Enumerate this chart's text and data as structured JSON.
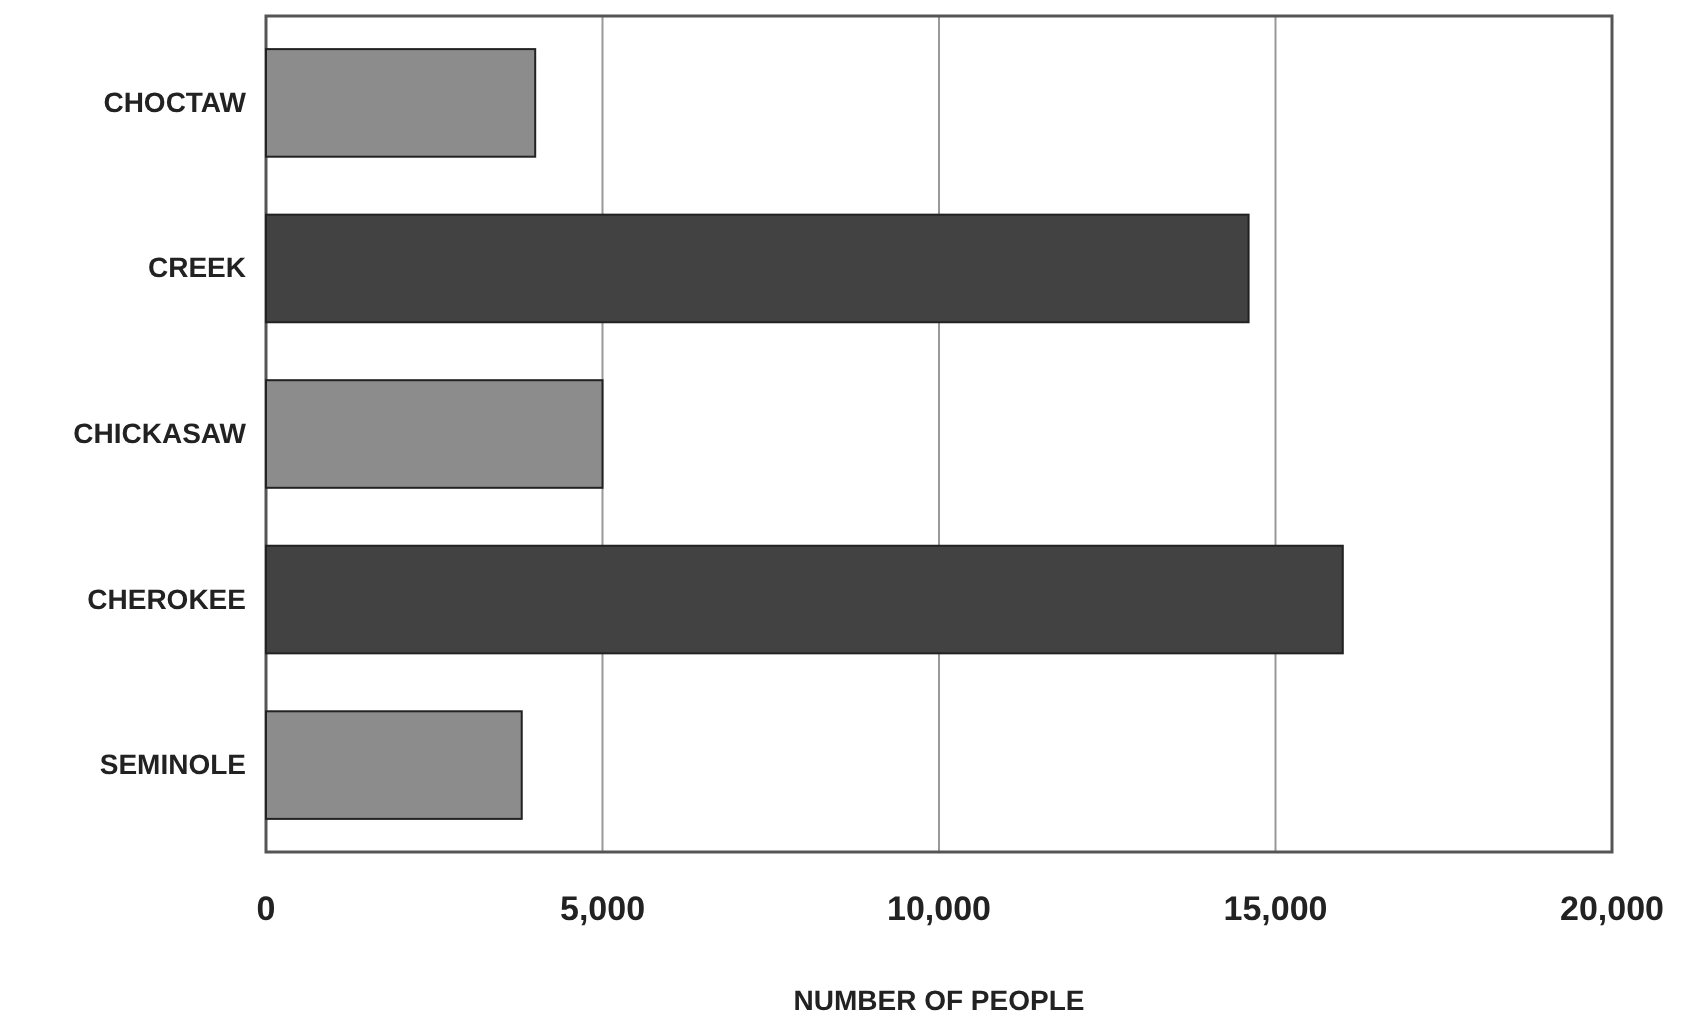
{
  "chart_data": {
    "type": "bar",
    "orientation": "horizontal",
    "xlabel": "NUMBER OF PEOPLE",
    "categories": [
      "CHOCTAW",
      "CREEK",
      "CHICKASAW",
      "CHEROKEE",
      "SEMINOLE"
    ],
    "values": [
      4000,
      14600,
      5000,
      16000,
      3800
    ],
    "colors": [
      "#8c8c8c",
      "#424242",
      "#8c8c8c",
      "#424242",
      "#8c8c8c"
    ],
    "xlim": [
      0,
      20000
    ],
    "xticks": [
      0,
      {
        "value": 5000,
        "label": "5,000"
      },
      {
        "value": 10000,
        "label": "10,000"
      },
      {
        "value": 15000,
        "label": "15,000"
      },
      {
        "value": 20000,
        "label": "20,000"
      }
    ],
    "grid": "x"
  }
}
